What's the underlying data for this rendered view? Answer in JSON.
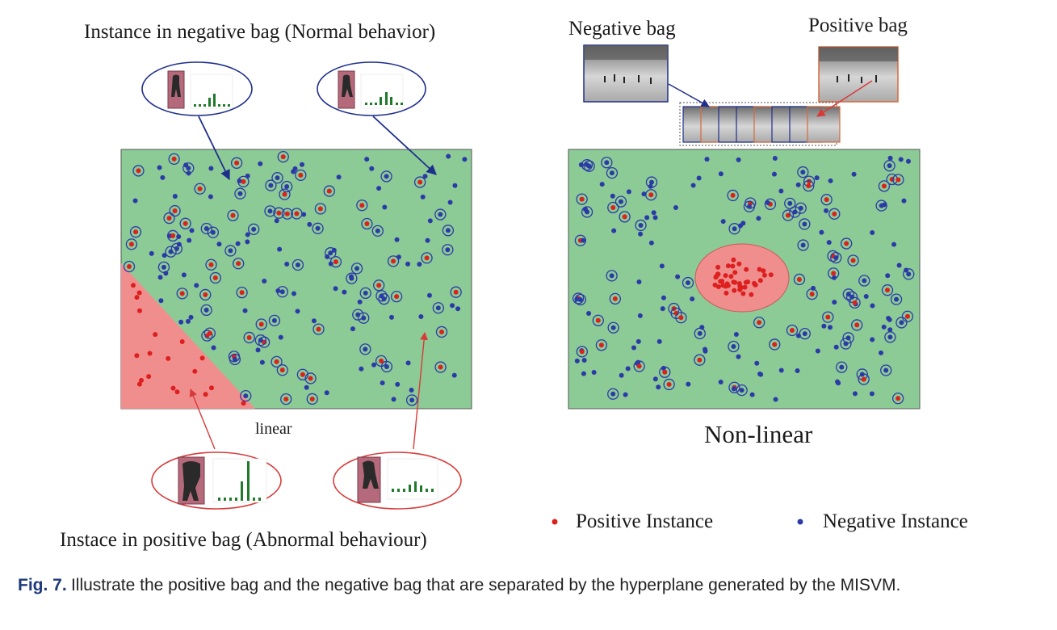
{
  "left_panel": {
    "top_title": "Instance in negative bag (Normal behavior)",
    "bottom_title": "Instace in positive bag (Abnormal behaviour)",
    "label": "linear"
  },
  "right_panel": {
    "negative_bag_label": "Negative bag",
    "positive_bag_label": "Positive bag",
    "label": "Non-linear"
  },
  "legend": {
    "positive": {
      "label": "Positive Instance",
      "color": "#dd1f1f"
    },
    "negative": {
      "label": "Negative Instance",
      "color": "#2c3aa8"
    }
  },
  "caption": {
    "label": "Fig. 7.",
    "text": "Illustrate the positive bag and the negative bag that are separated by the hyperplane generated by the MISVM."
  },
  "colors": {
    "normal_region": "#8ccb96",
    "abnormal_region": "#f08e8e",
    "negative_arrow": "#1f2f8c",
    "positive_arrow": "#d83a3a"
  },
  "icons": [
    "person-thumbnail",
    "histogram-icon",
    "video-frame",
    "frame-stack"
  ]
}
